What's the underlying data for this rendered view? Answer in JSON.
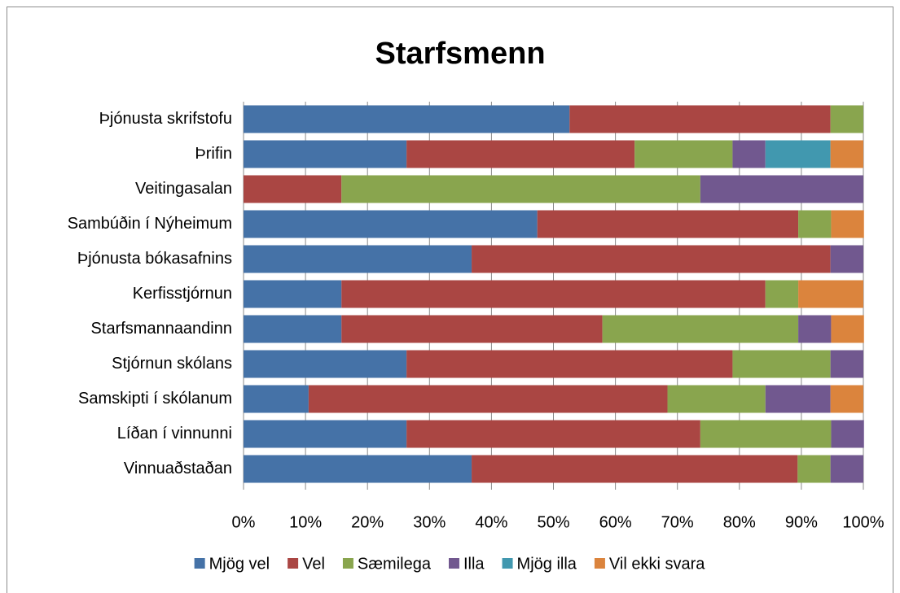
{
  "chart_data": {
    "type": "stacked_bar_horizontal",
    "title": "Starfsmenn",
    "categories": [
      "Þjónusta skrifstofu",
      "Þrifin",
      "Veitingasalan",
      "Sambúðin í Nýheimum",
      "Þjónusta bókasafnins",
      "Kerfisstjórnun",
      "Starfsmannaandinn",
      "Stjórnun skólans",
      "Samskipti í skólanum",
      "Líðan í vinnunni",
      "Vinnuaðstaðan"
    ],
    "series": [
      {
        "name": "Mjög vel",
        "color": "#4572a7",
        "values": [
          52.6,
          26.3,
          0,
          47.4,
          36.8,
          15.8,
          15.8,
          26.3,
          10.5,
          26.3,
          36.8
        ]
      },
      {
        "name": "Vel",
        "color": "#aa4643",
        "values": [
          42.1,
          36.8,
          15.8,
          42.1,
          57.9,
          68.4,
          42.1,
          52.6,
          57.9,
          47.4,
          52.6
        ]
      },
      {
        "name": "Sæmilega",
        "color": "#89a54e",
        "values": [
          5.3,
          15.8,
          57.9,
          5.3,
          0,
          5.3,
          31.6,
          15.8,
          15.8,
          21.1,
          5.3
        ]
      },
      {
        "name": "Illa",
        "color": "#71588f",
        "values": [
          0,
          5.3,
          26.3,
          0,
          5.3,
          0,
          5.3,
          5.3,
          10.5,
          5.3,
          5.3
        ]
      },
      {
        "name": "Mjög illa",
        "color": "#4198af",
        "values": [
          0,
          10.5,
          0,
          0,
          0,
          0,
          0,
          0,
          0,
          0,
          0
        ]
      },
      {
        "name": "Vil ekki svara",
        "color": "#db843d",
        "values": [
          0,
          5.3,
          0,
          5.3,
          0,
          10.5,
          5.3,
          0,
          5.3,
          0,
          0
        ]
      }
    ],
    "xlim": [
      0,
      100
    ],
    "xticks": [
      {
        "value": 0,
        "label": "0%"
      },
      {
        "value": 10,
        "label": "10%"
      },
      {
        "value": 20,
        "label": "20%"
      },
      {
        "value": 30,
        "label": "30%"
      },
      {
        "value": 40,
        "label": "40%"
      },
      {
        "value": 50,
        "label": "50%"
      },
      {
        "value": 60,
        "label": "60%"
      },
      {
        "value": 70,
        "label": "70%"
      },
      {
        "value": 80,
        "label": "80%"
      },
      {
        "value": 90,
        "label": "90%"
      },
      {
        "value": 100,
        "label": "100%"
      }
    ],
    "grid": true,
    "legend": "bottom"
  }
}
